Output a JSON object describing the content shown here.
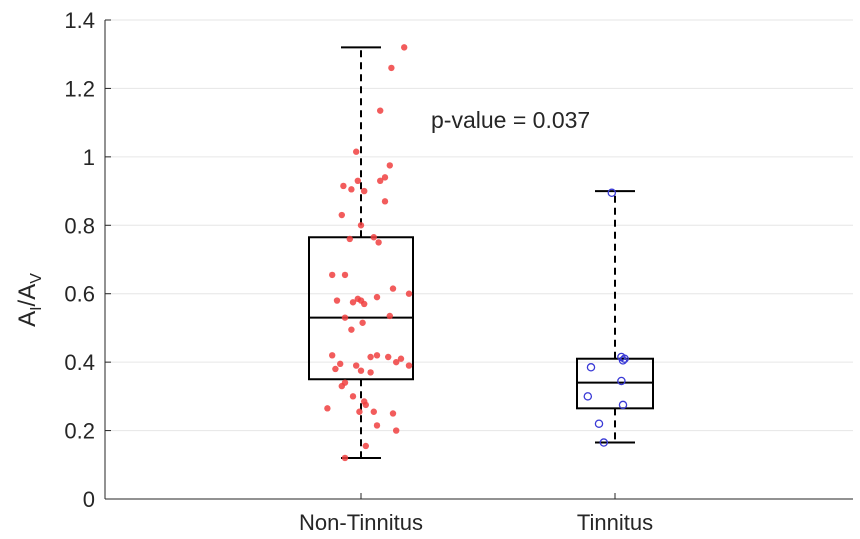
{
  "chart_data": {
    "type": "box",
    "ylabel": {
      "base1": "A",
      "sub1": "I",
      "slash": "/",
      "base2": "A",
      "sub2": "V"
    },
    "ylim": [
      0,
      1.4
    ],
    "yticks": [
      0,
      0.2,
      0.4,
      0.6,
      0.8,
      1,
      1.2,
      1.4
    ],
    "ytick_labels": [
      "0",
      "0.2",
      "0.4",
      "0.6",
      "0.8",
      "1",
      "1.2",
      "1.4"
    ],
    "grid": "horizontal",
    "annotation": "p-value = 0.037",
    "categories": [
      "Non-Tinnitus",
      "Tinnitus"
    ],
    "series": [
      {
        "category": "Non-Tinnitus",
        "color": "#f04040",
        "marker": "filled-circle",
        "box": {
          "whisker_low": 0.12,
          "q1": 0.35,
          "median": 0.53,
          "q3": 0.765,
          "whisker_high": 1.32
        },
        "points": [
          [
            0.27,
            1.32
          ],
          [
            0.19,
            1.26
          ],
          [
            0.12,
            1.135
          ],
          [
            -0.03,
            1.015
          ],
          [
            0.18,
            0.975
          ],
          [
            0.15,
            0.94
          ],
          [
            0.12,
            0.93
          ],
          [
            -0.02,
            0.93
          ],
          [
            -0.11,
            0.915
          ],
          [
            -0.06,
            0.905
          ],
          [
            0.02,
            0.9
          ],
          [
            0.15,
            0.87
          ],
          [
            -0.12,
            0.83
          ],
          [
            0.0,
            0.8
          ],
          [
            -0.07,
            0.76
          ],
          [
            0.08,
            0.765
          ],
          [
            0.11,
            0.75
          ],
          [
            -0.18,
            0.655
          ],
          [
            -0.1,
            0.655
          ],
          [
            0.2,
            0.615
          ],
          [
            0.3,
            0.6
          ],
          [
            0.1,
            0.59
          ],
          [
            -0.02,
            0.585
          ],
          [
            -0.15,
            0.58
          ],
          [
            0.0,
            0.58
          ],
          [
            -0.05,
            0.575
          ],
          [
            0.02,
            0.57
          ],
          [
            0.18,
            0.535
          ],
          [
            -0.1,
            0.53
          ],
          [
            0.01,
            0.515
          ],
          [
            -0.06,
            0.495
          ],
          [
            -0.18,
            0.42
          ],
          [
            0.1,
            0.42
          ],
          [
            0.17,
            0.415
          ],
          [
            0.06,
            0.415
          ],
          [
            0.25,
            0.41
          ],
          [
            0.22,
            0.4
          ],
          [
            -0.13,
            0.395
          ],
          [
            -0.03,
            0.39
          ],
          [
            0.3,
            0.39
          ],
          [
            -0.16,
            0.38
          ],
          [
            0.0,
            0.375
          ],
          [
            0.06,
            0.37
          ],
          [
            -0.1,
            0.34
          ],
          [
            -0.12,
            0.33
          ],
          [
            -0.05,
            0.3
          ],
          [
            0.02,
            0.285
          ],
          [
            0.03,
            0.275
          ],
          [
            -0.21,
            0.265
          ],
          [
            0.08,
            0.255
          ],
          [
            -0.01,
            0.255
          ],
          [
            0.2,
            0.25
          ],
          [
            0.1,
            0.215
          ],
          [
            0.22,
            0.2
          ],
          [
            0.03,
            0.155
          ],
          [
            -0.1,
            0.12
          ]
        ]
      },
      {
        "category": "Tinnitus",
        "color": "#3a3ad6",
        "marker": "open-circle",
        "box": {
          "whisker_low": 0.165,
          "q1": 0.265,
          "median": 0.34,
          "q3": 0.41,
          "whisker_high": 0.9
        },
        "points": [
          [
            -0.02,
            0.895
          ],
          [
            0.04,
            0.415
          ],
          [
            0.06,
            0.41
          ],
          [
            0.05,
            0.405
          ],
          [
            -0.15,
            0.385
          ],
          [
            0.04,
            0.345
          ],
          [
            -0.17,
            0.3
          ],
          [
            0.05,
            0.275
          ],
          [
            -0.1,
            0.22
          ],
          [
            -0.07,
            0.165
          ]
        ]
      }
    ]
  }
}
